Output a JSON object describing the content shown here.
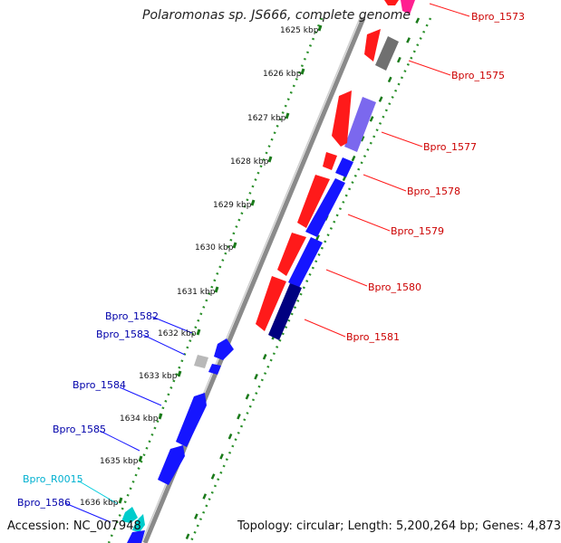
{
  "title": "Polaromonas sp. JS666, complete genome",
  "footer": {
    "accession": "Accession: NC_007948",
    "topology": "Topology: circular; Length: 5,200,264 bp; Genes: 4,873"
  },
  "colors": {
    "backbone": "#8a8a8a",
    "tick_major": "#1a7a1a",
    "tick_minor": "#2a8f2a",
    "gene_red": "#ff1a1a",
    "gene_blue": "#1515ff",
    "gene_navy": "#000080",
    "gene_slate": "#7b68ee",
    "gene_gray": "#707070",
    "gene_lightgray": "#b8b8b8",
    "gene_pink": "#ff2090",
    "gene_cyan": "#00cccc",
    "label_red": "#cc0000",
    "label_blue": "#0000aa",
    "label_cyan": "#00b0d0"
  },
  "ruler": {
    "ticks": [
      "1625 kbp",
      "1626 kbp",
      "1627 kbp",
      "1628 kbp",
      "1629 kbp",
      "1630 kbp",
      "1631 kbp",
      "1632 kbp",
      "1633 kbp",
      "1634 kbp",
      "1635 kbp",
      "1636 kbp"
    ]
  },
  "right_labels": [
    "Bpro_1573",
    "Bpro_1575",
    "Bpro_1577",
    "Bpro_1578",
    "Bpro_1579",
    "Bpro_1580",
    "Bpro_1581"
  ],
  "left_labels": [
    "Bpro_1582",
    "Bpro_1583",
    "Bpro_1584",
    "Bpro_1585",
    "Bpro_R0015",
    "Bpro_1586"
  ]
}
